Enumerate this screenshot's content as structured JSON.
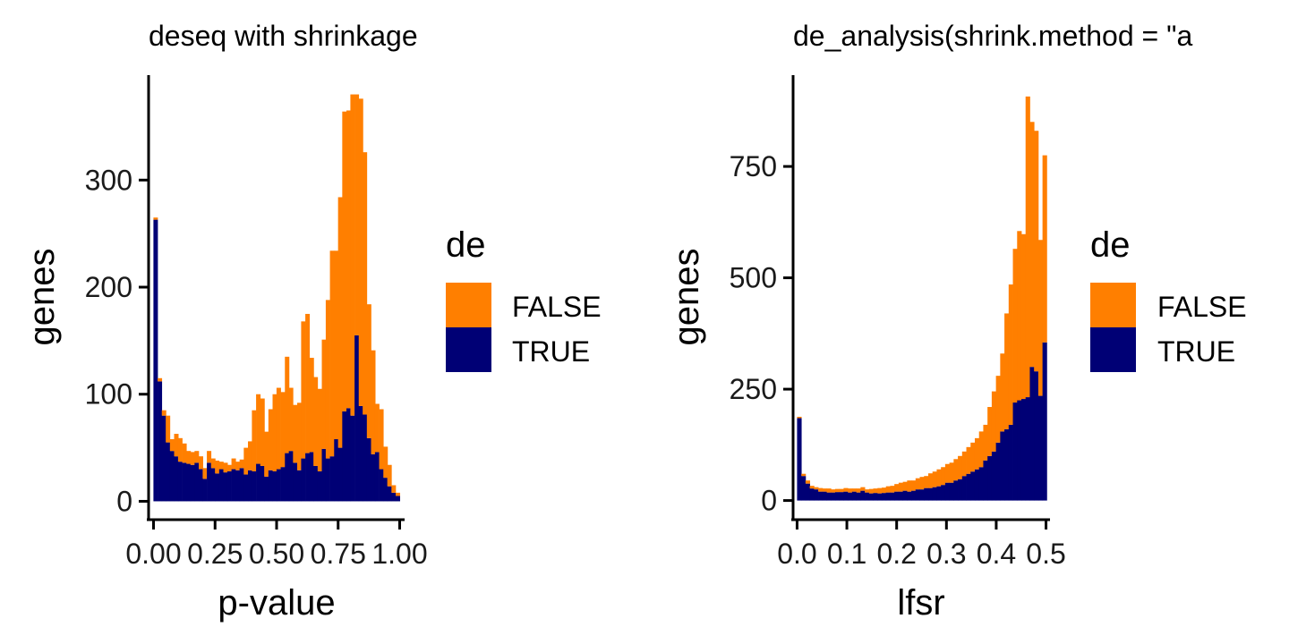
{
  "chart_data": [
    {
      "type": "bar",
      "stacked": true,
      "title": "deseq with shrinkage",
      "xlabel": "p-value",
      "ylabel": "genes",
      "xlim": [
        -0.02,
        1.02
      ],
      "ylim": [
        -18,
        398
      ],
      "x_ticks": [
        0,
        0.25,
        0.5,
        0.75,
        1
      ],
      "x_tick_labels": [
        "0.00",
        "0.25",
        "0.50",
        "0.75",
        "1.00"
      ],
      "y_ticks": [
        0,
        100,
        200,
        300
      ],
      "y_tick_labels": [
        "0",
        "100",
        "200",
        "300"
      ],
      "bin_width": 0.01667,
      "x": [
        0.008,
        0.025,
        0.042,
        0.058,
        0.075,
        0.092,
        0.108,
        0.125,
        0.142,
        0.158,
        0.175,
        0.192,
        0.208,
        0.225,
        0.242,
        0.258,
        0.275,
        0.292,
        0.308,
        0.325,
        0.342,
        0.358,
        0.375,
        0.392,
        0.408,
        0.425,
        0.442,
        0.458,
        0.475,
        0.492,
        0.508,
        0.525,
        0.542,
        0.558,
        0.575,
        0.592,
        0.608,
        0.625,
        0.642,
        0.658,
        0.675,
        0.692,
        0.708,
        0.725,
        0.742,
        0.758,
        0.775,
        0.792,
        0.808,
        0.825,
        0.842,
        0.858,
        0.875,
        0.892,
        0.908,
        0.925,
        0.942,
        0.958,
        0.975,
        0.992
      ],
      "legend_title": "de",
      "legend_position": "right",
      "series": [
        {
          "name": "TRUE",
          "color": "#000075",
          "values": [
            263,
            112,
            80,
            55,
            47,
            42,
            37,
            36,
            35,
            34,
            36,
            30,
            21,
            36,
            31,
            26,
            30,
            27,
            28,
            30,
            29,
            31,
            25,
            29,
            28,
            35,
            33,
            23,
            29,
            28,
            30,
            32,
            45,
            47,
            36,
            29,
            40,
            45,
            46,
            33,
            28,
            49,
            40,
            42,
            58,
            50,
            84,
            87,
            80,
            155,
            89,
            81,
            59,
            44,
            46,
            30,
            22,
            14,
            8,
            5
          ]
        },
        {
          "name": "FALSE",
          "color": "#FF7F00",
          "values": [
            2,
            3,
            5,
            25,
            11,
            21,
            22,
            18,
            12,
            12,
            11,
            12,
            10,
            11,
            9,
            12,
            7,
            9,
            6,
            10,
            8,
            8,
            25,
            27,
            57,
            65,
            63,
            42,
            57,
            72,
            76,
            70,
            90,
            59,
            54,
            63,
            128,
            130,
            88,
            83,
            77,
            102,
            148,
            192,
            176,
            234,
            280,
            278,
            300,
            225,
            287,
            245,
            125,
            97,
            45,
            56,
            29,
            20,
            7,
            3
          ]
        }
      ]
    },
    {
      "type": "bar",
      "stacked": true,
      "title": "de_analysis(shrink.method = \"a",
      "xlabel": "lfsr",
      "ylabel": "genes",
      "xlim": [
        -0.008,
        0.508
      ],
      "ylim": [
        -45,
        955
      ],
      "x_ticks": [
        0,
        0.1,
        0.2,
        0.3,
        0.4,
        0.5
      ],
      "x_tick_labels": [
        "0.0",
        "0.1",
        "0.2",
        "0.3",
        "0.4",
        "0.5"
      ],
      "y_ticks": [
        0,
        250,
        500,
        750
      ],
      "y_tick_labels": [
        "0",
        "250",
        "500",
        "750"
      ],
      "bin_width": 0.0085,
      "x": [
        0.0042,
        0.0127,
        0.0212,
        0.0297,
        0.0382,
        0.0467,
        0.0552,
        0.0637,
        0.0722,
        0.0807,
        0.0892,
        0.0977,
        0.1062,
        0.1147,
        0.1232,
        0.1317,
        0.1402,
        0.1487,
        0.1572,
        0.1657,
        0.1742,
        0.1827,
        0.1912,
        0.1997,
        0.2082,
        0.2167,
        0.2252,
        0.2337,
        0.2422,
        0.2507,
        0.2592,
        0.2677,
        0.2762,
        0.2847,
        0.2932,
        0.3017,
        0.3102,
        0.3187,
        0.3272,
        0.3357,
        0.3442,
        0.3527,
        0.3612,
        0.3697,
        0.3782,
        0.3867,
        0.3952,
        0.4037,
        0.4122,
        0.4207,
        0.4292,
        0.4377,
        0.4462,
        0.4547,
        0.4632,
        0.4717,
        0.4802,
        0.4887,
        0.4972
      ],
      "legend_title": "de",
      "legend_position": "right",
      "series": [
        {
          "name": "TRUE",
          "color": "#000075",
          "values": [
            185,
            55,
            38,
            27,
            25,
            20,
            20,
            18,
            18,
            19,
            19,
            20,
            18,
            20,
            18,
            22,
            18,
            16,
            17,
            16,
            17,
            18,
            18,
            20,
            20,
            22,
            20,
            22,
            25,
            25,
            28,
            28,
            30,
            32,
            35,
            40,
            40,
            45,
            48,
            55,
            60,
            65,
            70,
            75,
            90,
            100,
            110,
            130,
            155,
            160,
            170,
            220,
            225,
            228,
            232,
            300,
            290,
            235,
            355
          ]
        },
        {
          "name": "FALSE",
          "color": "#FF7F00",
          "values": [
            3,
            5,
            7,
            6,
            5,
            8,
            7,
            9,
            7,
            7,
            7,
            8,
            9,
            7,
            9,
            8,
            7,
            10,
            10,
            12,
            12,
            14,
            15,
            17,
            20,
            20,
            25,
            23,
            25,
            28,
            27,
            33,
            35,
            38,
            40,
            42,
            45,
            48,
            52,
            55,
            60,
            65,
            70,
            80,
            80,
            110,
            135,
            150,
            175,
            260,
            315,
            345,
            380,
            370,
            675,
            550,
            540,
            350,
            420
          ]
        }
      ]
    }
  ]
}
